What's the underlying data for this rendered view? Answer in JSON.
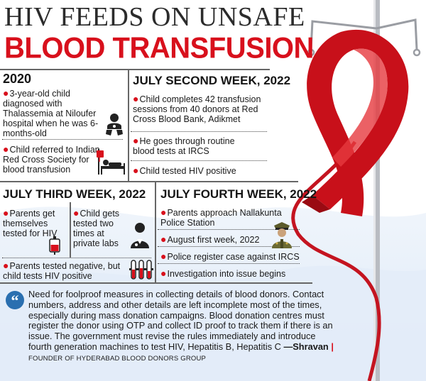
{
  "title": {
    "line1": "HIV FEEDS ON UNSAFE",
    "line2": "BLOOD TRANSFUSION"
  },
  "sections": {
    "s2020": {
      "heading": "2020",
      "items": [
        "3-year-old child diagnosed with Thalassemia at Niloufer hospital when he was 6-months-old",
        "Child referred to Indian Red Cross Society for blood transfusion"
      ]
    },
    "july2": {
      "heading": "JULY SECOND WEEK, 2022",
      "items": [
        "Child completes 42 transfusion sessions from 40 donors at Red Cross Blood Bank, Adikmet",
        "He goes through routine blood tests at IRCS",
        "Child tested HIV positive"
      ]
    },
    "july3": {
      "heading": "JULY THIRD WEEK, 2022",
      "items": [
        "Parents get themselves tested for HIV",
        "Child gets tested two times at private labs",
        "Parents tested negative, but child tests HIV positive"
      ]
    },
    "july4": {
      "heading": "JULY FOURTH WEEK, 2022",
      "items": [
        "Parents approach Nallakunta Police Station",
        "August first week, 2022",
        "Police register case against IRCS",
        "Investigation into issue begins"
      ]
    }
  },
  "quote": {
    "text": "Need for foolproof measures in collecting details of blood donors. Contact numbers, address and other details are left incomplete most of the times, especially during mass donation campaigns. Blood donation centres must register the donor using OTP and collect ID proof to track them if there is an issue. The government must revise the rules immediately and introduce fourth generation machines to test HIV, Hepatitis B, Hepatitis C",
    "author": "—Shravan",
    "separator": "|",
    "affiliation": "FOUNDER OF HYDERABAD BLOOD DONORS GROUP"
  },
  "icons": [
    "baby-icon",
    "transfusion-bed-icon",
    "blood-bag-icon",
    "doctor-icon",
    "test-tubes-icon",
    "police-officer-icon",
    "quote-icon",
    "red-ribbon-icon",
    "iv-stand-icon"
  ],
  "colors": {
    "accent_red": "#d8101c",
    "ribbon_red": "#c8101a",
    "wave_blue": "#dfe9f7",
    "text": "#1a1a1a"
  }
}
